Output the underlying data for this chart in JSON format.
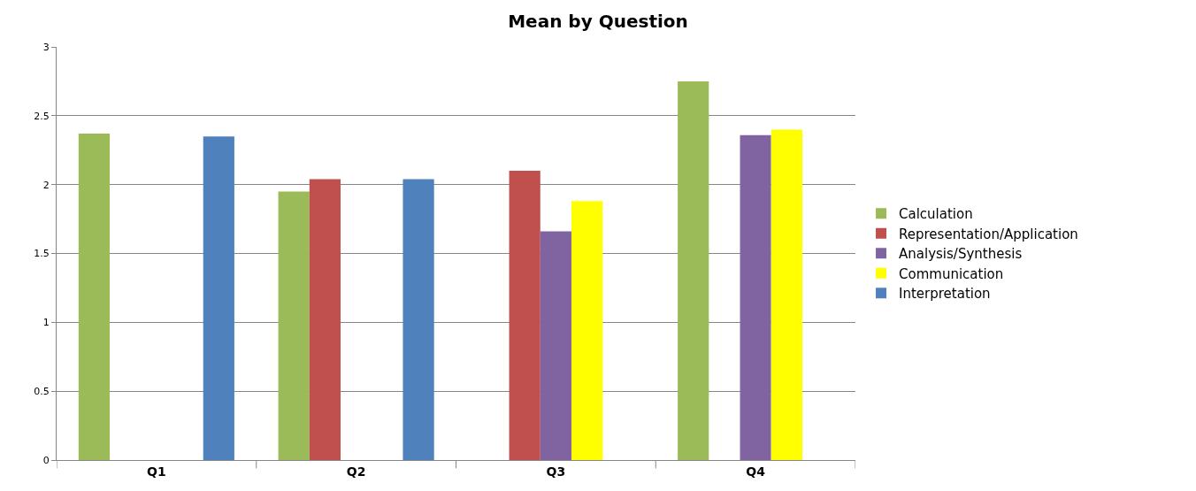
{
  "chart_data": {
    "type": "bar",
    "title": "Mean by Question",
    "categories": [
      "Q1",
      "Q2",
      "Q3",
      "Q4"
    ],
    "series": [
      {
        "name": "Calculation",
        "color": "#9bbb59",
        "values": [
          2.37,
          1.95,
          null,
          2.75
        ]
      },
      {
        "name": "Representation/Application",
        "color": "#c0504d",
        "values": [
          null,
          2.04,
          2.1,
          null
        ]
      },
      {
        "name": "Analysis/Synthesis",
        "color": "#8064a2",
        "values": [
          null,
          null,
          1.66,
          2.36
        ]
      },
      {
        "name": "Communication",
        "color": "#ffff00",
        "values": [
          null,
          null,
          1.88,
          2.4
        ]
      },
      {
        "name": "Interpretation",
        "color": "#4f81bd",
        "values": [
          2.35,
          2.04,
          null,
          null
        ]
      }
    ],
    "ylim": [
      0,
      3
    ],
    "yticks": [
      0,
      0.5,
      1,
      1.5,
      2,
      2.5,
      3
    ],
    "grid": "y",
    "legend": "right"
  }
}
